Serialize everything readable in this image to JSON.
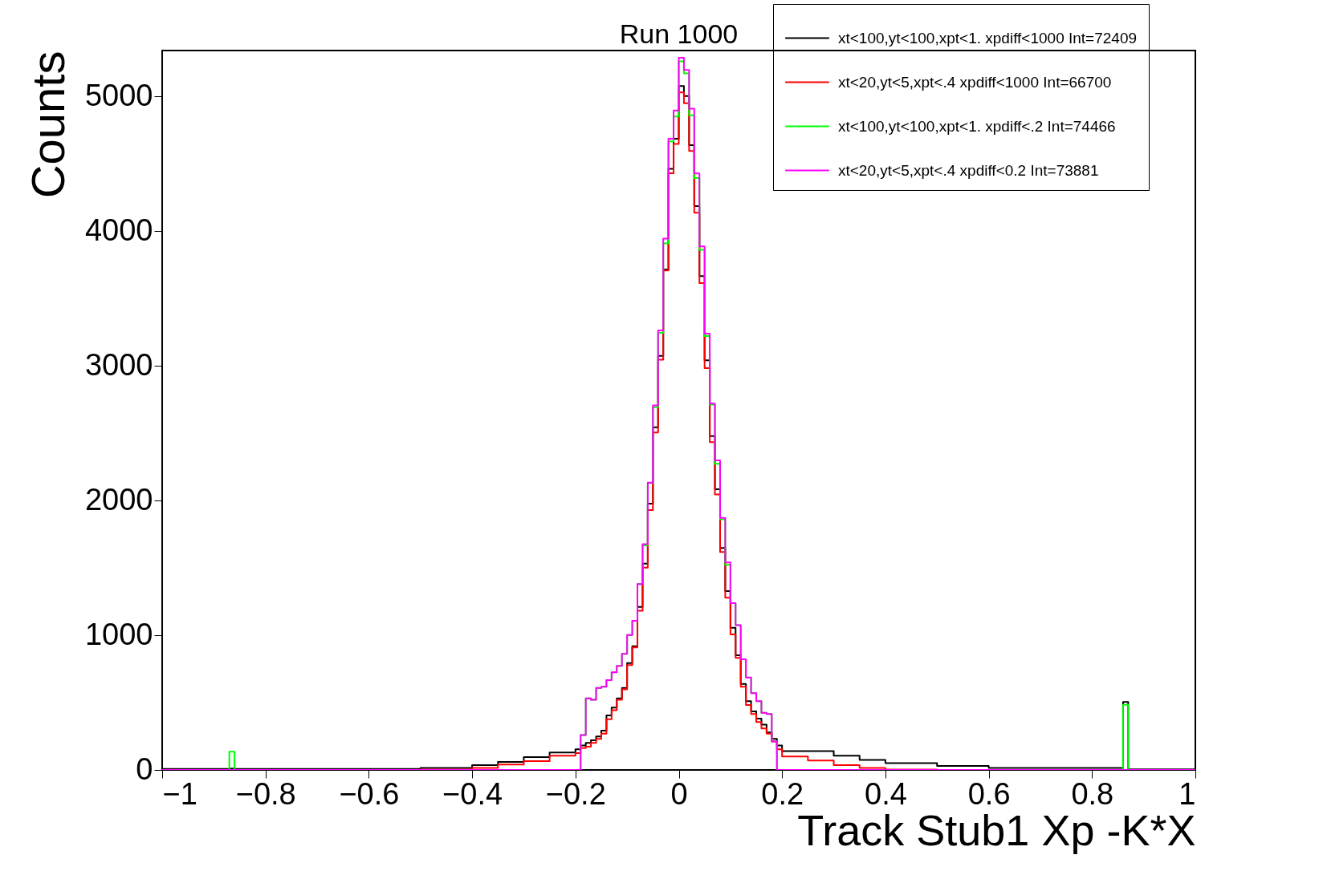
{
  "chart_data": {
    "type": "histogram",
    "title": "Run 1000",
    "xlabel": "Track Stub1 Xp -K*X",
    "ylabel": "Counts",
    "bins": [
      -1,
      -0.87,
      -0.86,
      -0.5,
      -0.4,
      -0.35,
      -0.3,
      -0.25,
      -0.2,
      -0.19,
      -0.18,
      -0.17,
      -0.16,
      -0.15,
      -0.14,
      -0.13,
      -0.12,
      -0.11,
      -0.1,
      -0.09,
      -0.08,
      -0.07,
      -0.06,
      -0.05,
      -0.04,
      -0.03,
      -0.02,
      -0.01,
      0,
      0.01,
      0.02,
      0.03,
      0.04,
      0.05,
      0.06,
      0.07,
      0.08,
      0.09,
      0.1,
      0.11,
      0.12,
      0.13,
      0.14,
      0.15,
      0.16,
      0.17,
      0.18,
      0.19,
      0.2,
      0.25,
      0.3,
      0.35,
      0.4,
      0.5,
      0.6,
      0.86,
      0.87,
      1
    ],
    "series": [
      {
        "name": "xt<100,yt<100,xpt<1. xpdiff<1000 Int=72409",
        "color": "#000000",
        "values": [
          8,
          10,
          8,
          15,
          35,
          60,
          95,
          130,
          153,
          182,
          201,
          220,
          249,
          292,
          405,
          463,
          531,
          609,
          793,
          919,
          1210,
          1531,
          1977,
          2544,
          3074,
          3715,
          4462,
          4685,
          5077,
          5002,
          4637,
          4185,
          3666,
          3041,
          2478,
          2084,
          1647,
          1327,
          1055,
          851,
          638,
          511,
          434,
          381,
          337,
          278,
          230,
          182,
          140,
          140,
          105,
          75,
          50,
          30,
          15,
          505,
          5
        ]
      },
      {
        "name": "xt<20,yt<5,xpt<.4 xpdiff<1000 Int=66700",
        "color": "#ff0000",
        "values": [
          0,
          0,
          0,
          3,
          15,
          40,
          65,
          105,
          125,
          162,
          172,
          201,
          230,
          269,
          376,
          444,
          521,
          599,
          778,
          910,
          1181,
          1501,
          1929,
          2505,
          3045,
          3707,
          4429,
          4646,
          5029,
          4948,
          4594,
          4136,
          3614,
          2983,
          2433,
          2045,
          1618,
          1278,
          1006,
          832,
          618,
          482,
          415,
          356,
          308,
          269,
          211,
          153,
          100,
          70,
          35,
          15,
          3,
          0,
          0,
          0,
          0
        ]
      },
      {
        "name": "xt<100,yt<100,xpt<1. xpdiff<.2 Int=74466",
        "color": "#00ff00",
        "values": [
          0,
          135,
          0,
          0,
          0,
          0,
          0,
          0,
          0,
          259,
          531,
          521,
          609,
          618,
          667,
          725,
          773,
          861,
          1001,
          1108,
          1379,
          1667,
          2130,
          2692,
          3245,
          3909,
          4666,
          4850,
          5260,
          5171,
          4860,
          4394,
          3860,
          3220,
          2711,
          2273,
          1860,
          1522,
          1239,
          1075,
          822,
          686,
          570,
          511,
          424,
          415,
          211,
          0,
          0,
          0,
          0,
          0,
          0,
          0,
          0,
          483,
          0
        ]
      },
      {
        "name": "xt<20,yt<5,xpt<.4 xpdiff<0.2 Int=73881",
        "color": "#ff00ff",
        "values": [
          0,
          0,
          0,
          0,
          0,
          0,
          0,
          0,
          0,
          259,
          531,
          521,
          609,
          618,
          667,
          725,
          773,
          861,
          1001,
          1108,
          1379,
          1676,
          2133,
          2705,
          3263,
          3944,
          4685,
          4895,
          5287,
          5196,
          4909,
          4427,
          3886,
          3239,
          2719,
          2298,
          1871,
          1541,
          1239,
          1075,
          822,
          686,
          570,
          511,
          424,
          415,
          211,
          0,
          0,
          0,
          0,
          0,
          0,
          0,
          0,
          0,
          0
        ]
      }
    ],
    "xlim": [
      -1,
      1
    ],
    "xticks": [
      -1,
      -0.8,
      -0.6,
      -0.4,
      -0.2,
      0,
      0.2,
      0.4,
      0.6,
      0.8,
      1
    ],
    "ylim": [
      0,
      5340
    ],
    "yticks": [
      0,
      1000,
      2000,
      3000,
      4000,
      5000
    ],
    "grid": false,
    "legend": "top right"
  }
}
